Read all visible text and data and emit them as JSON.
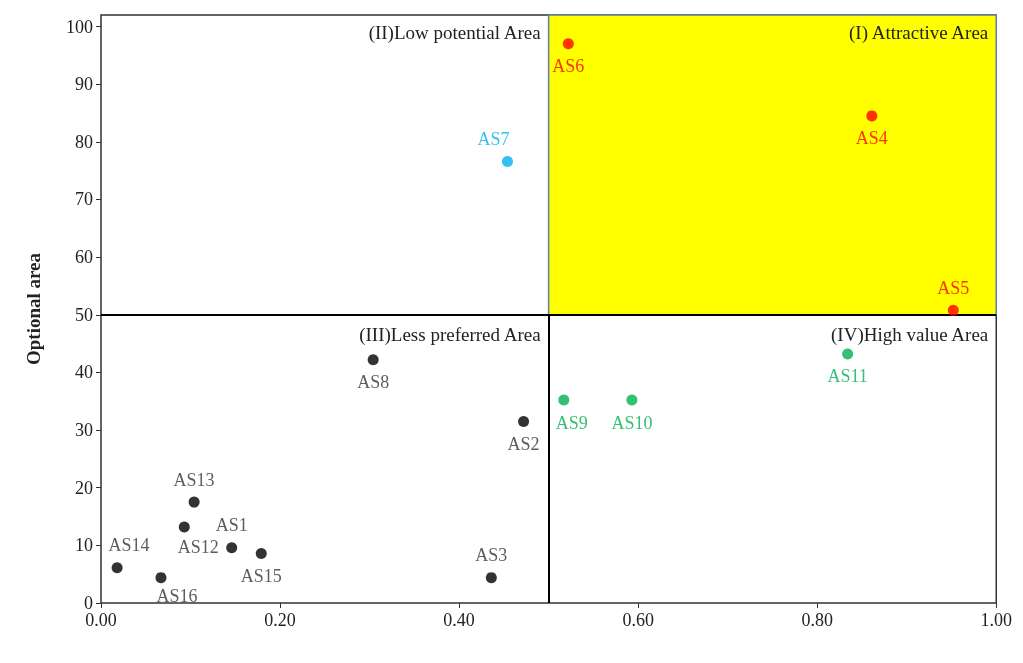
{
  "chart_data": {
    "type": "scatter",
    "ylabel": "Optional area",
    "xlim": [
      0,
      1
    ],
    "ylim": [
      0,
      102
    ],
    "xticks": [
      {
        "value": 0,
        "label": "0.00"
      },
      {
        "value": 0.2,
        "label": "0.20"
      },
      {
        "value": 0.4,
        "label": "0.40"
      },
      {
        "value": 0.6,
        "label": "0.60"
      },
      {
        "value": 0.8,
        "label": "0.80"
      },
      {
        "value": 1,
        "label": "1.00"
      }
    ],
    "yticks": [
      0,
      10,
      20,
      30,
      40,
      50,
      60,
      70,
      80,
      90,
      100
    ],
    "grid": false,
    "marker": "circle",
    "ref_lines": [
      {
        "axis": "x",
        "value": 0.5,
        "color": "#000000"
      },
      {
        "axis": "y",
        "value": 50,
        "color": "#000000"
      }
    ],
    "bands": [
      {
        "axis": "y",
        "from": 50,
        "to": 102,
        "color": "#ffff00"
      }
    ],
    "annotations": [
      "(I) Attractive Area",
      "(II)Low potential Area",
      "(III)Less preferred Area",
      "(IV)High value Area"
    ],
    "series": [
      {
        "color": "#ff0000",
        "x": [
          0.522,
          0.861,
          0.952
        ],
        "values": [
          97,
          84.5,
          50.8
        ],
        "value_labels": [
          "AS6",
          "AS4",
          "AS5"
        ]
      },
      {
        "color": "#00b0f0",
        "x": [
          0.454
        ],
        "values": [
          76.6
        ],
        "value_labels": [
          "AS7"
        ]
      },
      {
        "color": "#00b050",
        "x": [
          0.517,
          0.593,
          0.834
        ],
        "values": [
          35.2,
          35.2,
          43.2
        ],
        "value_labels": [
          "AS9",
          "AS10",
          "AS11"
        ]
      },
      {
        "color": "#000000",
        "x": [
          0.304,
          0.472,
          0.104,
          0.093,
          0.146,
          0.179,
          0.018,
          0.067,
          0.436
        ],
        "values": [
          42.2,
          31.5,
          17.5,
          13.2,
          9.6,
          8.6,
          6.1,
          4.4,
          4.4
        ],
        "value_labels": [
          "AS8",
          "AS2",
          "AS13",
          "AS12",
          "AS1",
          "AS15",
          "AS14",
          "AS16",
          "AS3"
        ]
      }
    ]
  }
}
